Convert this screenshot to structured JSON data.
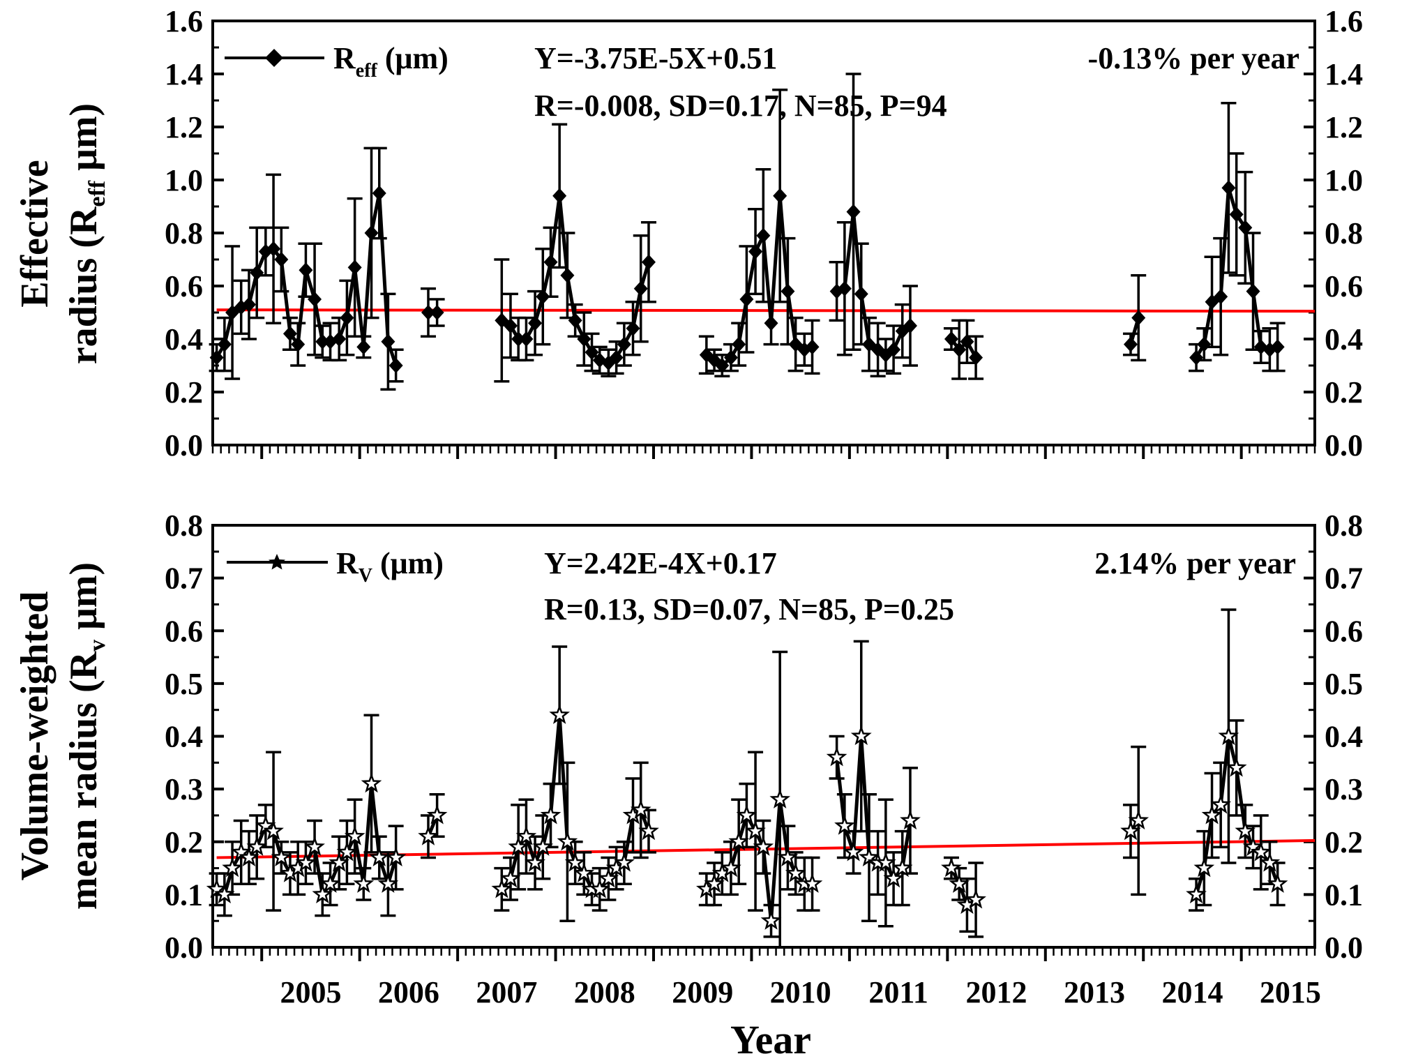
{
  "x_axis": {
    "label": "Year",
    "tick_labels": [
      "2005",
      "2006",
      "2007",
      "2008",
      "2009",
      "2010",
      "2011",
      "2012",
      "2013",
      "2014",
      "2015"
    ]
  },
  "colors": {
    "fit_line": "#ff0000",
    "data": "#000000",
    "axes": "#000000"
  },
  "chart_data": [
    {
      "type": "line",
      "panel": "top",
      "ylabel_line1": "Effective",
      "ylabel_line2_prefix": "radius (R",
      "ylabel_line2_sub": "eff",
      "ylabel_line2_suffix": " μm)",
      "legend_main": "R",
      "legend_sub": "eff",
      "legend_unit": " (μm)",
      "marker": "diamond",
      "equation": "Y=-3.75E-5X+0.51",
      "stats": "R=-0.008, SD=0.17, N=85, P=94",
      "trend": "-0.13% per year",
      "ylim": [
        0,
        1.6
      ],
      "yticks": [
        "0.0",
        "0.2",
        "0.4",
        "0.6",
        "0.8",
        "1.0",
        "1.2",
        "1.4",
        "1.6"
      ],
      "xlim": [
        2004.5,
        2015.75
      ],
      "fit": {
        "slope_per_month": -3.75e-05,
        "intercept": 0.51,
        "months": 134
      },
      "segments": [
        [
          [
            2004.54,
            0.33,
            0.05
          ],
          [
            2004.62,
            0.38,
            0.1
          ],
          [
            2004.7,
            0.5,
            0.25
          ],
          [
            2004.79,
            0.52,
            0.1
          ],
          [
            2004.87,
            0.53,
            0.13
          ],
          [
            2004.95,
            0.65,
            0.17
          ],
          [
            2005.04,
            0.73,
            0.09
          ],
          [
            2005.12,
            0.74,
            0.28
          ],
          [
            2005.2,
            0.7,
            0.12
          ],
          [
            2005.29,
            0.42,
            0.06
          ],
          [
            2005.37,
            0.38,
            0.08
          ],
          [
            2005.45,
            0.66,
            0.1
          ],
          [
            2005.54,
            0.55,
            0.21
          ],
          [
            2005.62,
            0.39,
            0.06
          ],
          [
            2005.7,
            0.39,
            0.07
          ],
          [
            2005.79,
            0.4,
            0.08
          ],
          [
            2005.87,
            0.48,
            0.14
          ],
          [
            2005.95,
            0.67,
            0.26
          ],
          [
            2006.04,
            0.37,
            0.04
          ],
          [
            2006.12,
            0.8,
            0.32
          ],
          [
            2006.2,
            0.95,
            0.17
          ],
          [
            2006.29,
            0.39,
            0.18
          ],
          [
            2006.37,
            0.3,
            0.06
          ]
        ],
        [
          [
            2006.7,
            0.5,
            0.09
          ],
          [
            2006.79,
            0.5,
            0.05
          ]
        ],
        [
          [
            2007.45,
            0.47,
            0.23
          ],
          [
            2007.54,
            0.45,
            0.12
          ],
          [
            2007.62,
            0.4,
            0.08
          ],
          [
            2007.7,
            0.4,
            0.08
          ],
          [
            2007.79,
            0.46,
            0.12
          ],
          [
            2007.87,
            0.56,
            0.18
          ],
          [
            2007.95,
            0.69,
            0.13
          ],
          [
            2008.04,
            0.94,
            0.27
          ],
          [
            2008.12,
            0.64,
            0.16
          ],
          [
            2008.2,
            0.47,
            0.06
          ],
          [
            2008.29,
            0.4,
            0.1
          ],
          [
            2008.37,
            0.35,
            0.07
          ],
          [
            2008.45,
            0.32,
            0.05
          ],
          [
            2008.54,
            0.31,
            0.05
          ],
          [
            2008.62,
            0.33,
            0.06
          ],
          [
            2008.7,
            0.38,
            0.08
          ],
          [
            2008.79,
            0.44,
            0.1
          ],
          [
            2008.87,
            0.59,
            0.2
          ],
          [
            2008.95,
            0.69,
            0.15
          ]
        ],
        [
          [
            2009.54,
            0.34,
            0.07
          ],
          [
            2009.62,
            0.32,
            0.04
          ],
          [
            2009.7,
            0.3,
            0.04
          ],
          [
            2009.79,
            0.33,
            0.05
          ],
          [
            2009.87,
            0.38,
            0.08
          ],
          [
            2009.95,
            0.55,
            0.2
          ],
          [
            2010.04,
            0.73,
            0.16
          ],
          [
            2010.12,
            0.79,
            0.25
          ],
          [
            2010.2,
            0.46,
            0.08
          ],
          [
            2010.29,
            0.94,
            0.4
          ],
          [
            2010.37,
            0.58,
            0.2
          ],
          [
            2010.45,
            0.38,
            0.1
          ],
          [
            2010.54,
            0.36,
            0.06
          ],
          [
            2010.62,
            0.37,
            0.1
          ]
        ],
        [
          [
            2010.87,
            0.58,
            0.11
          ],
          [
            2010.95,
            0.59,
            0.25
          ],
          [
            2011.04,
            0.88,
            0.52
          ],
          [
            2011.12,
            0.57,
            0.19
          ],
          [
            2011.2,
            0.38,
            0.1
          ],
          [
            2011.29,
            0.36,
            0.1
          ],
          [
            2011.37,
            0.34,
            0.06
          ],
          [
            2011.45,
            0.36,
            0.09
          ],
          [
            2011.54,
            0.43,
            0.1
          ],
          [
            2011.62,
            0.45,
            0.15
          ]
        ],
        [
          [
            2012.04,
            0.4,
            0.04
          ],
          [
            2012.12,
            0.36,
            0.11
          ],
          [
            2012.2,
            0.39,
            0.08
          ],
          [
            2012.29,
            0.33,
            0.08
          ]
        ],
        [
          [
            2013.87,
            0.38,
            0.04
          ],
          [
            2013.95,
            0.48,
            0.16
          ]
        ],
        [
          [
            2014.54,
            0.33,
            0.05
          ],
          [
            2014.62,
            0.38,
            0.06
          ],
          [
            2014.7,
            0.54,
            0.17
          ],
          [
            2014.79,
            0.56,
            0.22
          ],
          [
            2014.87,
            0.97,
            0.32
          ],
          [
            2014.95,
            0.87,
            0.23
          ],
          [
            2015.04,
            0.82,
            0.21
          ],
          [
            2015.12,
            0.58,
            0.22
          ],
          [
            2015.2,
            0.37,
            0.06
          ],
          [
            2015.29,
            0.36,
            0.08
          ],
          [
            2015.37,
            0.37,
            0.09
          ]
        ]
      ]
    },
    {
      "type": "line",
      "panel": "bottom",
      "ylabel_line1": "Volume-weighted",
      "ylabel_line2_prefix": "mean radius (R",
      "ylabel_line2_sub": "v",
      "ylabel_line2_suffix": " μm)",
      "legend_main": "R",
      "legend_sub": "V",
      "legend_unit": " (μm)",
      "marker": "star",
      "equation": "Y=2.42E-4X+0.17",
      "stats": "R=0.13, SD=0.07, N=85, P=0.25",
      "trend": "2.14% per year",
      "ylim": [
        0,
        0.8
      ],
      "yticks": [
        "0.0",
        "0.1",
        "0.2",
        "0.3",
        "0.4",
        "0.5",
        "0.6",
        "0.7",
        "0.8"
      ],
      "xlim": [
        2004.5,
        2015.75
      ],
      "fit": {
        "slope_per_month": 0.000242,
        "intercept": 0.17,
        "months": 134
      },
      "segments": [
        [
          [
            2004.54,
            0.11,
            0.03
          ],
          [
            2004.62,
            0.1,
            0.04
          ],
          [
            2004.7,
            0.15,
            0.05
          ],
          [
            2004.79,
            0.18,
            0.06
          ],
          [
            2004.87,
            0.17,
            0.05
          ],
          [
            2004.95,
            0.19,
            0.06
          ],
          [
            2005.04,
            0.23,
            0.04
          ],
          [
            2005.12,
            0.22,
            0.15
          ],
          [
            2005.2,
            0.17,
            0.03
          ],
          [
            2005.29,
            0.14,
            0.04
          ],
          [
            2005.37,
            0.15,
            0.05
          ],
          [
            2005.45,
            0.16,
            0.04
          ],
          [
            2005.54,
            0.19,
            0.05
          ],
          [
            2005.62,
            0.1,
            0.04
          ],
          [
            2005.7,
            0.12,
            0.04
          ],
          [
            2005.79,
            0.16,
            0.05
          ],
          [
            2005.87,
            0.18,
            0.06
          ],
          [
            2005.95,
            0.21,
            0.07
          ],
          [
            2006.04,
            0.12,
            0.03
          ],
          [
            2006.12,
            0.31,
            0.13
          ],
          [
            2006.2,
            0.17,
            0.04
          ],
          [
            2006.29,
            0.12,
            0.06
          ],
          [
            2006.37,
            0.17,
            0.06
          ]
        ],
        [
          [
            2006.7,
            0.21,
            0.04
          ],
          [
            2006.79,
            0.25,
            0.04
          ]
        ],
        [
          [
            2007.45,
            0.11,
            0.04
          ],
          [
            2007.54,
            0.13,
            0.04
          ],
          [
            2007.62,
            0.19,
            0.08
          ],
          [
            2007.7,
            0.21,
            0.07
          ],
          [
            2007.79,
            0.16,
            0.05
          ],
          [
            2007.87,
            0.19,
            0.06
          ],
          [
            2007.95,
            0.25,
            0.06
          ],
          [
            2008.04,
            0.44,
            0.13
          ],
          [
            2008.12,
            0.2,
            0.15
          ],
          [
            2008.2,
            0.16,
            0.04
          ],
          [
            2008.29,
            0.14,
            0.04
          ],
          [
            2008.37,
            0.11,
            0.03
          ],
          [
            2008.45,
            0.11,
            0.04
          ],
          [
            2008.54,
            0.13,
            0.04
          ],
          [
            2008.62,
            0.15,
            0.04
          ],
          [
            2008.7,
            0.16,
            0.04
          ],
          [
            2008.79,
            0.25,
            0.07
          ],
          [
            2008.87,
            0.26,
            0.09
          ],
          [
            2008.95,
            0.22,
            0.04
          ]
        ],
        [
          [
            2009.54,
            0.11,
            0.03
          ],
          [
            2009.62,
            0.12,
            0.04
          ],
          [
            2009.7,
            0.14,
            0.04
          ],
          [
            2009.79,
            0.15,
            0.05
          ],
          [
            2009.87,
            0.2,
            0.08
          ],
          [
            2009.95,
            0.25,
            0.06
          ],
          [
            2010.04,
            0.22,
            0.15
          ],
          [
            2010.12,
            0.19,
            0.05
          ],
          [
            2010.2,
            0.05,
            0.03
          ],
          [
            2010.29,
            0.28,
            0.28
          ],
          [
            2010.37,
            0.17,
            0.06
          ],
          [
            2010.45,
            0.14,
            0.04
          ],
          [
            2010.54,
            0.12,
            0.05
          ],
          [
            2010.62,
            0.12,
            0.05
          ]
        ],
        [
          [
            2010.87,
            0.36,
            0.04
          ],
          [
            2010.95,
            0.23,
            0.06
          ],
          [
            2011.04,
            0.18,
            0.04
          ],
          [
            2011.12,
            0.4,
            0.18
          ],
          [
            2011.2,
            0.17,
            0.12
          ],
          [
            2011.29,
            0.16,
            0.06
          ],
          [
            2011.37,
            0.16,
            0.12
          ],
          [
            2011.45,
            0.13,
            0.05
          ],
          [
            2011.54,
            0.15,
            0.07
          ],
          [
            2011.62,
            0.24,
            0.1
          ]
        ],
        [
          [
            2012.04,
            0.15,
            0.02
          ],
          [
            2012.12,
            0.12,
            0.03
          ],
          [
            2012.2,
            0.08,
            0.05
          ],
          [
            2012.29,
            0.09,
            0.07
          ]
        ],
        [
          [
            2013.87,
            0.22,
            0.05
          ],
          [
            2013.95,
            0.24,
            0.14
          ]
        ],
        [
          [
            2014.54,
            0.1,
            0.03
          ],
          [
            2014.62,
            0.15,
            0.07
          ],
          [
            2014.7,
            0.25,
            0.08
          ],
          [
            2014.79,
            0.27,
            0.08
          ],
          [
            2014.87,
            0.4,
            0.24
          ],
          [
            2014.95,
            0.34,
            0.09
          ],
          [
            2015.04,
            0.22,
            0.05
          ],
          [
            2015.12,
            0.19,
            0.04
          ],
          [
            2015.2,
            0.18,
            0.07
          ],
          [
            2015.29,
            0.16,
            0.04
          ],
          [
            2015.37,
            0.12,
            0.04
          ]
        ]
      ]
    }
  ]
}
